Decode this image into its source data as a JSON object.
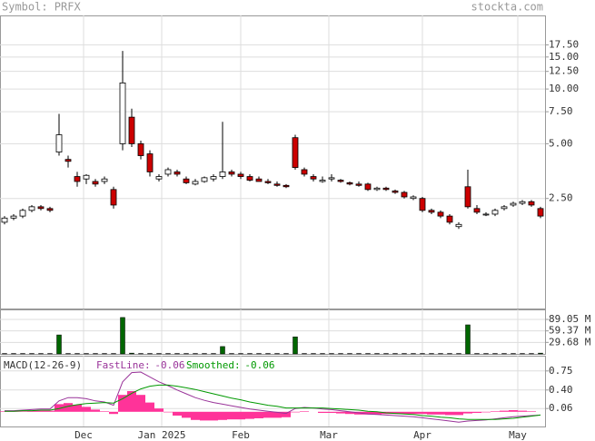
{
  "header": {
    "symbol": "Symbol: PRFX",
    "site": "stockta.com"
  },
  "chart_data": [
    {
      "type": "candlestick",
      "log_scale": true,
      "grid": true,
      "up_color": "#ffffff",
      "down_color": "#cc0000",
      "xlim": [
        -0.5,
        59.5
      ],
      "xticks": [
        {
          "value": 8.7,
          "label": "Dec"
        },
        {
          "value": 17.3,
          "label": "Jan 2025"
        },
        {
          "value": 26,
          "label": "Feb"
        },
        {
          "value": 35.7,
          "label": "Mar"
        },
        {
          "value": 46,
          "label": "Apr"
        },
        {
          "value": 56.5,
          "label": "May"
        }
      ],
      "ylim": [
        0.62,
        25.4
      ],
      "yticks": [
        {
          "value": 17.5,
          "label": "17.50"
        },
        {
          "value": 15,
          "label": "15.00"
        },
        {
          "value": 12.5,
          "label": "12.50"
        },
        {
          "value": 10,
          "label": "10.00"
        },
        {
          "value": 7.5,
          "label": "7.50"
        },
        {
          "value": 5,
          "label": "5.00"
        },
        {
          "value": 2.5,
          "label": "2.50"
        }
      ],
      "open": [
        1.85,
        1.95,
        2.0,
        2.15,
        2.25,
        2.2,
        4.5,
        4.1,
        3.3,
        3.2,
        3.1,
        3.1,
        2.8,
        5.0,
        7.0,
        5.0,
        4.4,
        3.2,
        3.4,
        3.5,
        3.2,
        3.0,
        3.1,
        3.2,
        3.3,
        3.5,
        3.4,
        3.3,
        3.2,
        3.1,
        3.0,
        2.95,
        5.4,
        3.6,
        3.3,
        3.1,
        3.2,
        3.15,
        3.05,
        3.0,
        3.0,
        2.8,
        2.85,
        2.75,
        2.7,
        2.5,
        2.5,
        2.15,
        2.1,
        2.0,
        1.75,
        2.9,
        2.2,
        2.05,
        2.05,
        2.2,
        2.3,
        2.35,
        2.4,
        2.2
      ],
      "high": [
        2.0,
        2.05,
        2.2,
        2.3,
        2.3,
        2.25,
        7.3,
        4.3,
        3.5,
        3.4,
        3.2,
        3.3,
        2.9,
        16.2,
        7.8,
        5.2,
        4.6,
        3.4,
        3.7,
        3.6,
        3.3,
        3.2,
        3.3,
        3.4,
        6.6,
        3.6,
        3.5,
        3.4,
        3.3,
        3.2,
        3.1,
        3.0,
        5.6,
        3.7,
        3.4,
        3.3,
        3.4,
        3.2,
        3.1,
        3.1,
        3.05,
        2.9,
        2.9,
        2.8,
        2.75,
        2.6,
        2.55,
        2.2,
        2.15,
        2.05,
        1.85,
        3.6,
        2.3,
        2.1,
        2.2,
        2.3,
        2.4,
        2.45,
        2.45,
        2.25
      ],
      "low": [
        1.8,
        1.9,
        1.95,
        2.1,
        2.15,
        2.1,
        4.3,
        3.7,
        2.9,
        3.0,
        2.9,
        3.0,
        2.2,
        4.6,
        4.8,
        4.1,
        3.3,
        3.1,
        3.3,
        3.3,
        3.0,
        2.95,
        3.05,
        3.1,
        3.2,
        3.3,
        3.2,
        3.1,
        3.1,
        3.0,
        2.9,
        2.85,
        3.6,
        3.3,
        3.1,
        3.05,
        3.1,
        3.05,
        2.95,
        2.9,
        2.75,
        2.75,
        2.75,
        2.65,
        2.5,
        2.45,
        2.1,
        2.05,
        1.95,
        1.8,
        1.7,
        2.2,
        2.05,
        2.0,
        2.0,
        2.15,
        2.25,
        2.3,
        2.25,
        1.95
      ],
      "close": [
        1.95,
        2.0,
        2.15,
        2.25,
        2.2,
        2.15,
        5.6,
        4.0,
        3.1,
        3.35,
        3.0,
        3.2,
        2.3,
        10.8,
        5.0,
        4.3,
        3.5,
        3.3,
        3.6,
        3.4,
        3.05,
        3.1,
        3.25,
        3.3,
        3.5,
        3.4,
        3.3,
        3.15,
        3.1,
        3.05,
        2.95,
        2.9,
        3.7,
        3.4,
        3.2,
        3.15,
        3.25,
        3.1,
        3.0,
        2.95,
        2.8,
        2.85,
        2.8,
        2.7,
        2.55,
        2.55,
        2.15,
        2.1,
        2.0,
        1.85,
        1.8,
        2.25,
        2.1,
        2.05,
        2.15,
        2.25,
        2.35,
        2.4,
        2.3,
        2.0
      ]
    },
    {
      "type": "bar",
      "color": "#006600",
      "ylim": [
        0,
        114.8
      ],
      "yticks": [
        {
          "value": 89.05,
          "label": "89.05 M"
        },
        {
          "value": 59.37,
          "label": "59.37 M"
        },
        {
          "value": 29.68,
          "label": "29.68 M"
        }
      ],
      "values": [
        1,
        1,
        1,
        1,
        1,
        1,
        49,
        1,
        1,
        1,
        1,
        1,
        1,
        94,
        2,
        1,
        1,
        1,
        1,
        1,
        1,
        1,
        1,
        1,
        19,
        1,
        1,
        1,
        1,
        1,
        1,
        1,
        44,
        1,
        1,
        1,
        1,
        1,
        1,
        1,
        1,
        1,
        1,
        1,
        1,
        1,
        1,
        1,
        1,
        1,
        1,
        75,
        1,
        1,
        1,
        1,
        1,
        1,
        1,
        2
      ]
    },
    {
      "type": "line",
      "title": "MACD(12-26-9)",
      "ylim": [
        -0.27,
        1.03
      ],
      "yticks": [
        0.75,
        {
          "value": 0.4,
          "label": "0.40"
        },
        0.06
      ],
      "series": [
        {
          "name": "FastLine:",
          "color": "#993399",
          "values": [
            0.02,
            0.02,
            0.03,
            0.04,
            0.05,
            0.05,
            0.2,
            0.26,
            0.26,
            0.24,
            0.2,
            0.18,
            0.12,
            0.55,
            0.72,
            0.73,
            0.64,
            0.55,
            0.48,
            0.4,
            0.33,
            0.26,
            0.21,
            0.17,
            0.14,
            0.11,
            0.08,
            0.05,
            0.03,
            0.01,
            -0.01,
            -0.03,
            0.06,
            0.08,
            0.07,
            0.05,
            0.04,
            0.02,
            0,
            -0.02,
            -0.04,
            -0.05,
            -0.06,
            -0.07,
            -0.08,
            -0.09,
            -0.11,
            -0.13,
            -0.15,
            -0.17,
            -0.19,
            -0.17,
            -0.16,
            -0.15,
            -0.13,
            -0.11,
            -0.09,
            -0.08,
            -0.07,
            -0.06
          ]
        },
        {
          "name": "Smoothed:",
          "color": "#009900",
          "values": [
            0.01,
            0.01,
            0.02,
            0.02,
            0.03,
            0.03,
            0.06,
            0.1,
            0.13,
            0.15,
            0.16,
            0.17,
            0.16,
            0.24,
            0.34,
            0.42,
            0.47,
            0.49,
            0.49,
            0.47,
            0.44,
            0.41,
            0.37,
            0.33,
            0.29,
            0.25,
            0.22,
            0.18,
            0.15,
            0.12,
            0.1,
            0.07,
            0.07,
            0.07,
            0.07,
            0.07,
            0.06,
            0.05,
            0.04,
            0.03,
            0.01,
            0,
            -0.02,
            -0.03,
            -0.04,
            -0.05,
            -0.07,
            -0.08,
            -0.1,
            -0.11,
            -0.13,
            -0.14,
            -0.14,
            -0.14,
            -0.14,
            -0.13,
            -0.12,
            -0.1,
            -0.08,
            -0.06
          ]
        }
      ],
      "histogram": {
        "color": "#ff3399",
        "values": [
          0.01,
          0.01,
          0.01,
          0.02,
          0.02,
          0.02,
          0.14,
          0.16,
          0.13,
          0.09,
          0.04,
          0.01,
          -0.04,
          0.31,
          0.38,
          0.31,
          0.17,
          0.06,
          -0.01,
          -0.07,
          -0.11,
          -0.15,
          -0.16,
          -0.16,
          -0.15,
          -0.14,
          -0.14,
          -0.13,
          -0.12,
          -0.11,
          -0.11,
          -0.1,
          -0.01,
          0.01,
          0,
          -0.02,
          -0.02,
          -0.03,
          -0.04,
          -0.05,
          -0.05,
          -0.05,
          -0.04,
          -0.04,
          -0.04,
          -0.04,
          -0.04,
          -0.05,
          -0.05,
          -0.06,
          -0.06,
          -0.03,
          -0.02,
          -0.01,
          0.01,
          0.02,
          0.03,
          0.02,
          0.01,
          0
        ]
      }
    }
  ]
}
